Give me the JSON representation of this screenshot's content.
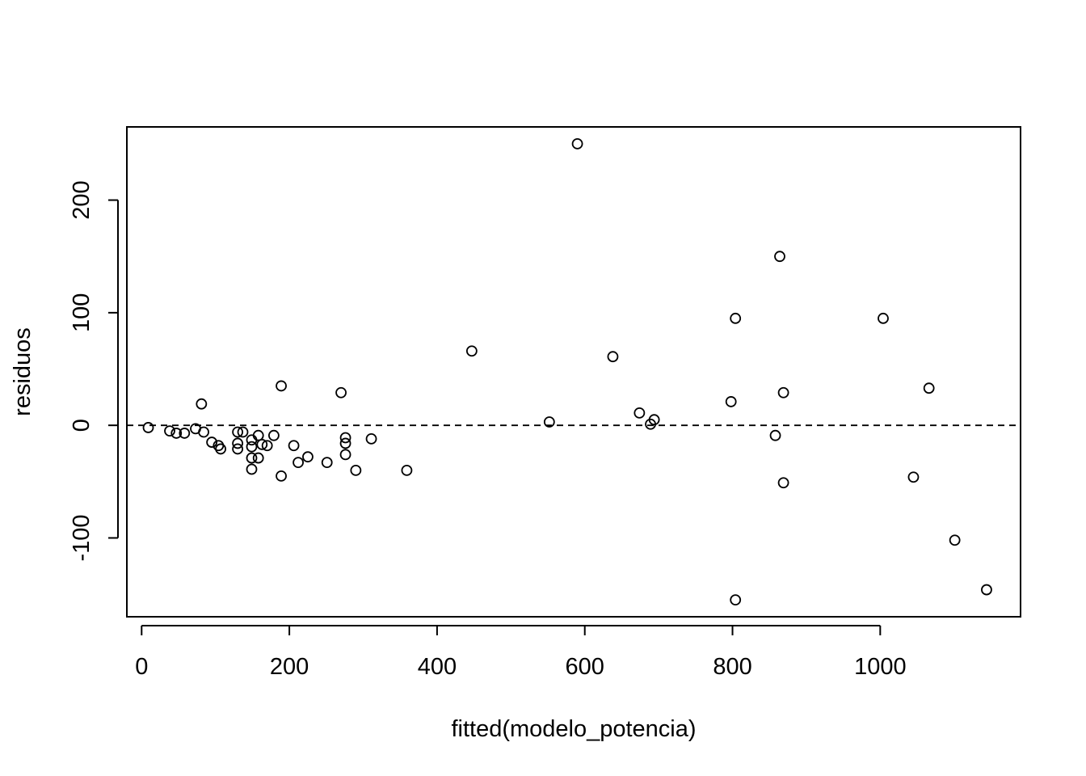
{
  "chart_data": {
    "type": "scatter",
    "xlabel": "fitted(modelo_potencia)",
    "ylabel": "residuos",
    "xlim": [
      -20,
      1190
    ],
    "ylim": [
      -170,
      265
    ],
    "x_ticks": [
      "0",
      "200",
      "400",
      "600",
      "800",
      "1000"
    ],
    "x_tick_values": [
      0,
      200,
      400,
      600,
      800,
      1000
    ],
    "y_ticks": [
      "-100",
      "0",
      "100",
      "200"
    ],
    "y_tick_values": [
      -100,
      0,
      100,
      200
    ],
    "reference_line": {
      "y": 0,
      "style": "dashed"
    },
    "grid": false,
    "marker": "open-circle",
    "points": [
      {
        "x": 9,
        "y": -2
      },
      {
        "x": 38,
        "y": -5
      },
      {
        "x": 47,
        "y": -7
      },
      {
        "x": 58,
        "y": -7
      },
      {
        "x": 73,
        "y": -3
      },
      {
        "x": 81,
        "y": 19
      },
      {
        "x": 84,
        "y": -6
      },
      {
        "x": 95,
        "y": -15
      },
      {
        "x": 104,
        "y": -18
      },
      {
        "x": 107,
        "y": -21
      },
      {
        "x": 130,
        "y": -6
      },
      {
        "x": 130,
        "y": -16
      },
      {
        "x": 130,
        "y": -21
      },
      {
        "x": 137,
        "y": -6
      },
      {
        "x": 149,
        "y": -13
      },
      {
        "x": 149,
        "y": -19
      },
      {
        "x": 149,
        "y": -29
      },
      {
        "x": 149,
        "y": -39
      },
      {
        "x": 158,
        "y": -9
      },
      {
        "x": 158,
        "y": -29
      },
      {
        "x": 163,
        "y": -17
      },
      {
        "x": 170,
        "y": -18
      },
      {
        "x": 179,
        "y": -9
      },
      {
        "x": 189,
        "y": 35
      },
      {
        "x": 189,
        "y": -45
      },
      {
        "x": 206,
        "y": -18
      },
      {
        "x": 212,
        "y": -33
      },
      {
        "x": 225,
        "y": -28
      },
      {
        "x": 251,
        "y": -33
      },
      {
        "x": 270,
        "y": 29
      },
      {
        "x": 276,
        "y": -11
      },
      {
        "x": 276,
        "y": -16
      },
      {
        "x": 276,
        "y": -26
      },
      {
        "x": 290,
        "y": -40
      },
      {
        "x": 311,
        "y": -12
      },
      {
        "x": 359,
        "y": -40
      },
      {
        "x": 447,
        "y": 66
      },
      {
        "x": 552,
        "y": 3
      },
      {
        "x": 590,
        "y": 250
      },
      {
        "x": 638,
        "y": 61
      },
      {
        "x": 674,
        "y": 11
      },
      {
        "x": 689,
        "y": 1
      },
      {
        "x": 694,
        "y": 5
      },
      {
        "x": 798,
        "y": 21
      },
      {
        "x": 804,
        "y": 95
      },
      {
        "x": 804,
        "y": -155
      },
      {
        "x": 858,
        "y": -9
      },
      {
        "x": 864,
        "y": 150
      },
      {
        "x": 869,
        "y": 29
      },
      {
        "x": 869,
        "y": -51
      },
      {
        "x": 1004,
        "y": 95
      },
      {
        "x": 1045,
        "y": -46
      },
      {
        "x": 1066,
        "y": 33
      },
      {
        "x": 1101,
        "y": -102
      },
      {
        "x": 1144,
        "y": -146
      }
    ]
  }
}
